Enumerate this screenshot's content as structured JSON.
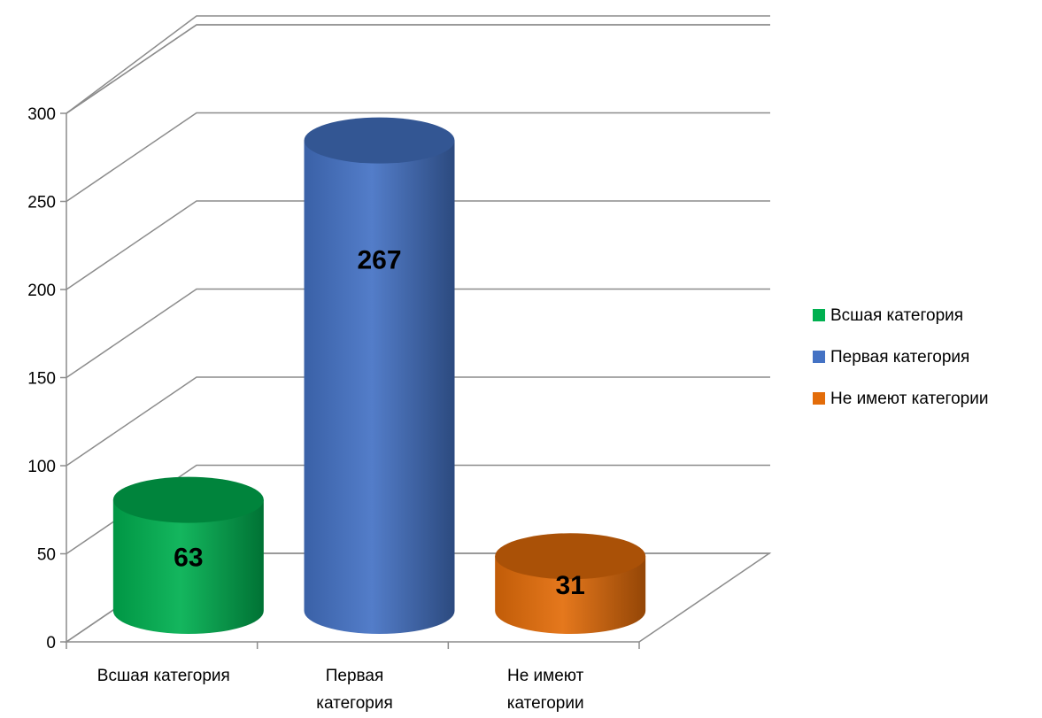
{
  "chart_data": {
    "type": "bar",
    "style": "3d-cylinder",
    "categories": [
      "Всшая категория",
      "Первая категория",
      "Не имеют категории"
    ],
    "series": [
      {
        "name": "Всшая категория",
        "values": [
          63,
          null,
          null
        ],
        "color": "#00B050"
      },
      {
        "name": "Первая категория",
        "values": [
          null,
          267,
          null
        ],
        "color": "#4472C4"
      },
      {
        "name": "Не имеют категории",
        "values": [
          null,
          null,
          31
        ],
        "color": "#E36C09"
      }
    ],
    "values": [
      63,
      267,
      31
    ],
    "data_labels": [
      "63",
      "267",
      "31"
    ],
    "category_labels": [
      [
        "Всшая категория"
      ],
      [
        "Первая",
        "категория"
      ],
      [
        "Не имеют",
        "категории"
      ]
    ],
    "y_ticks": [
      "0",
      "50",
      "100",
      "150",
      "200",
      "250",
      "300"
    ],
    "ylim": [
      0,
      300
    ],
    "title": "",
    "xlabel": "",
    "ylabel": "",
    "grid": true,
    "legend_position": "right",
    "legend": [
      {
        "label": "Всшая категория",
        "color": "#00B050"
      },
      {
        "label": "Первая категория",
        "color": "#4472C4"
      },
      {
        "label": "Не имеют категории",
        "color": "#E36C09"
      }
    ]
  }
}
